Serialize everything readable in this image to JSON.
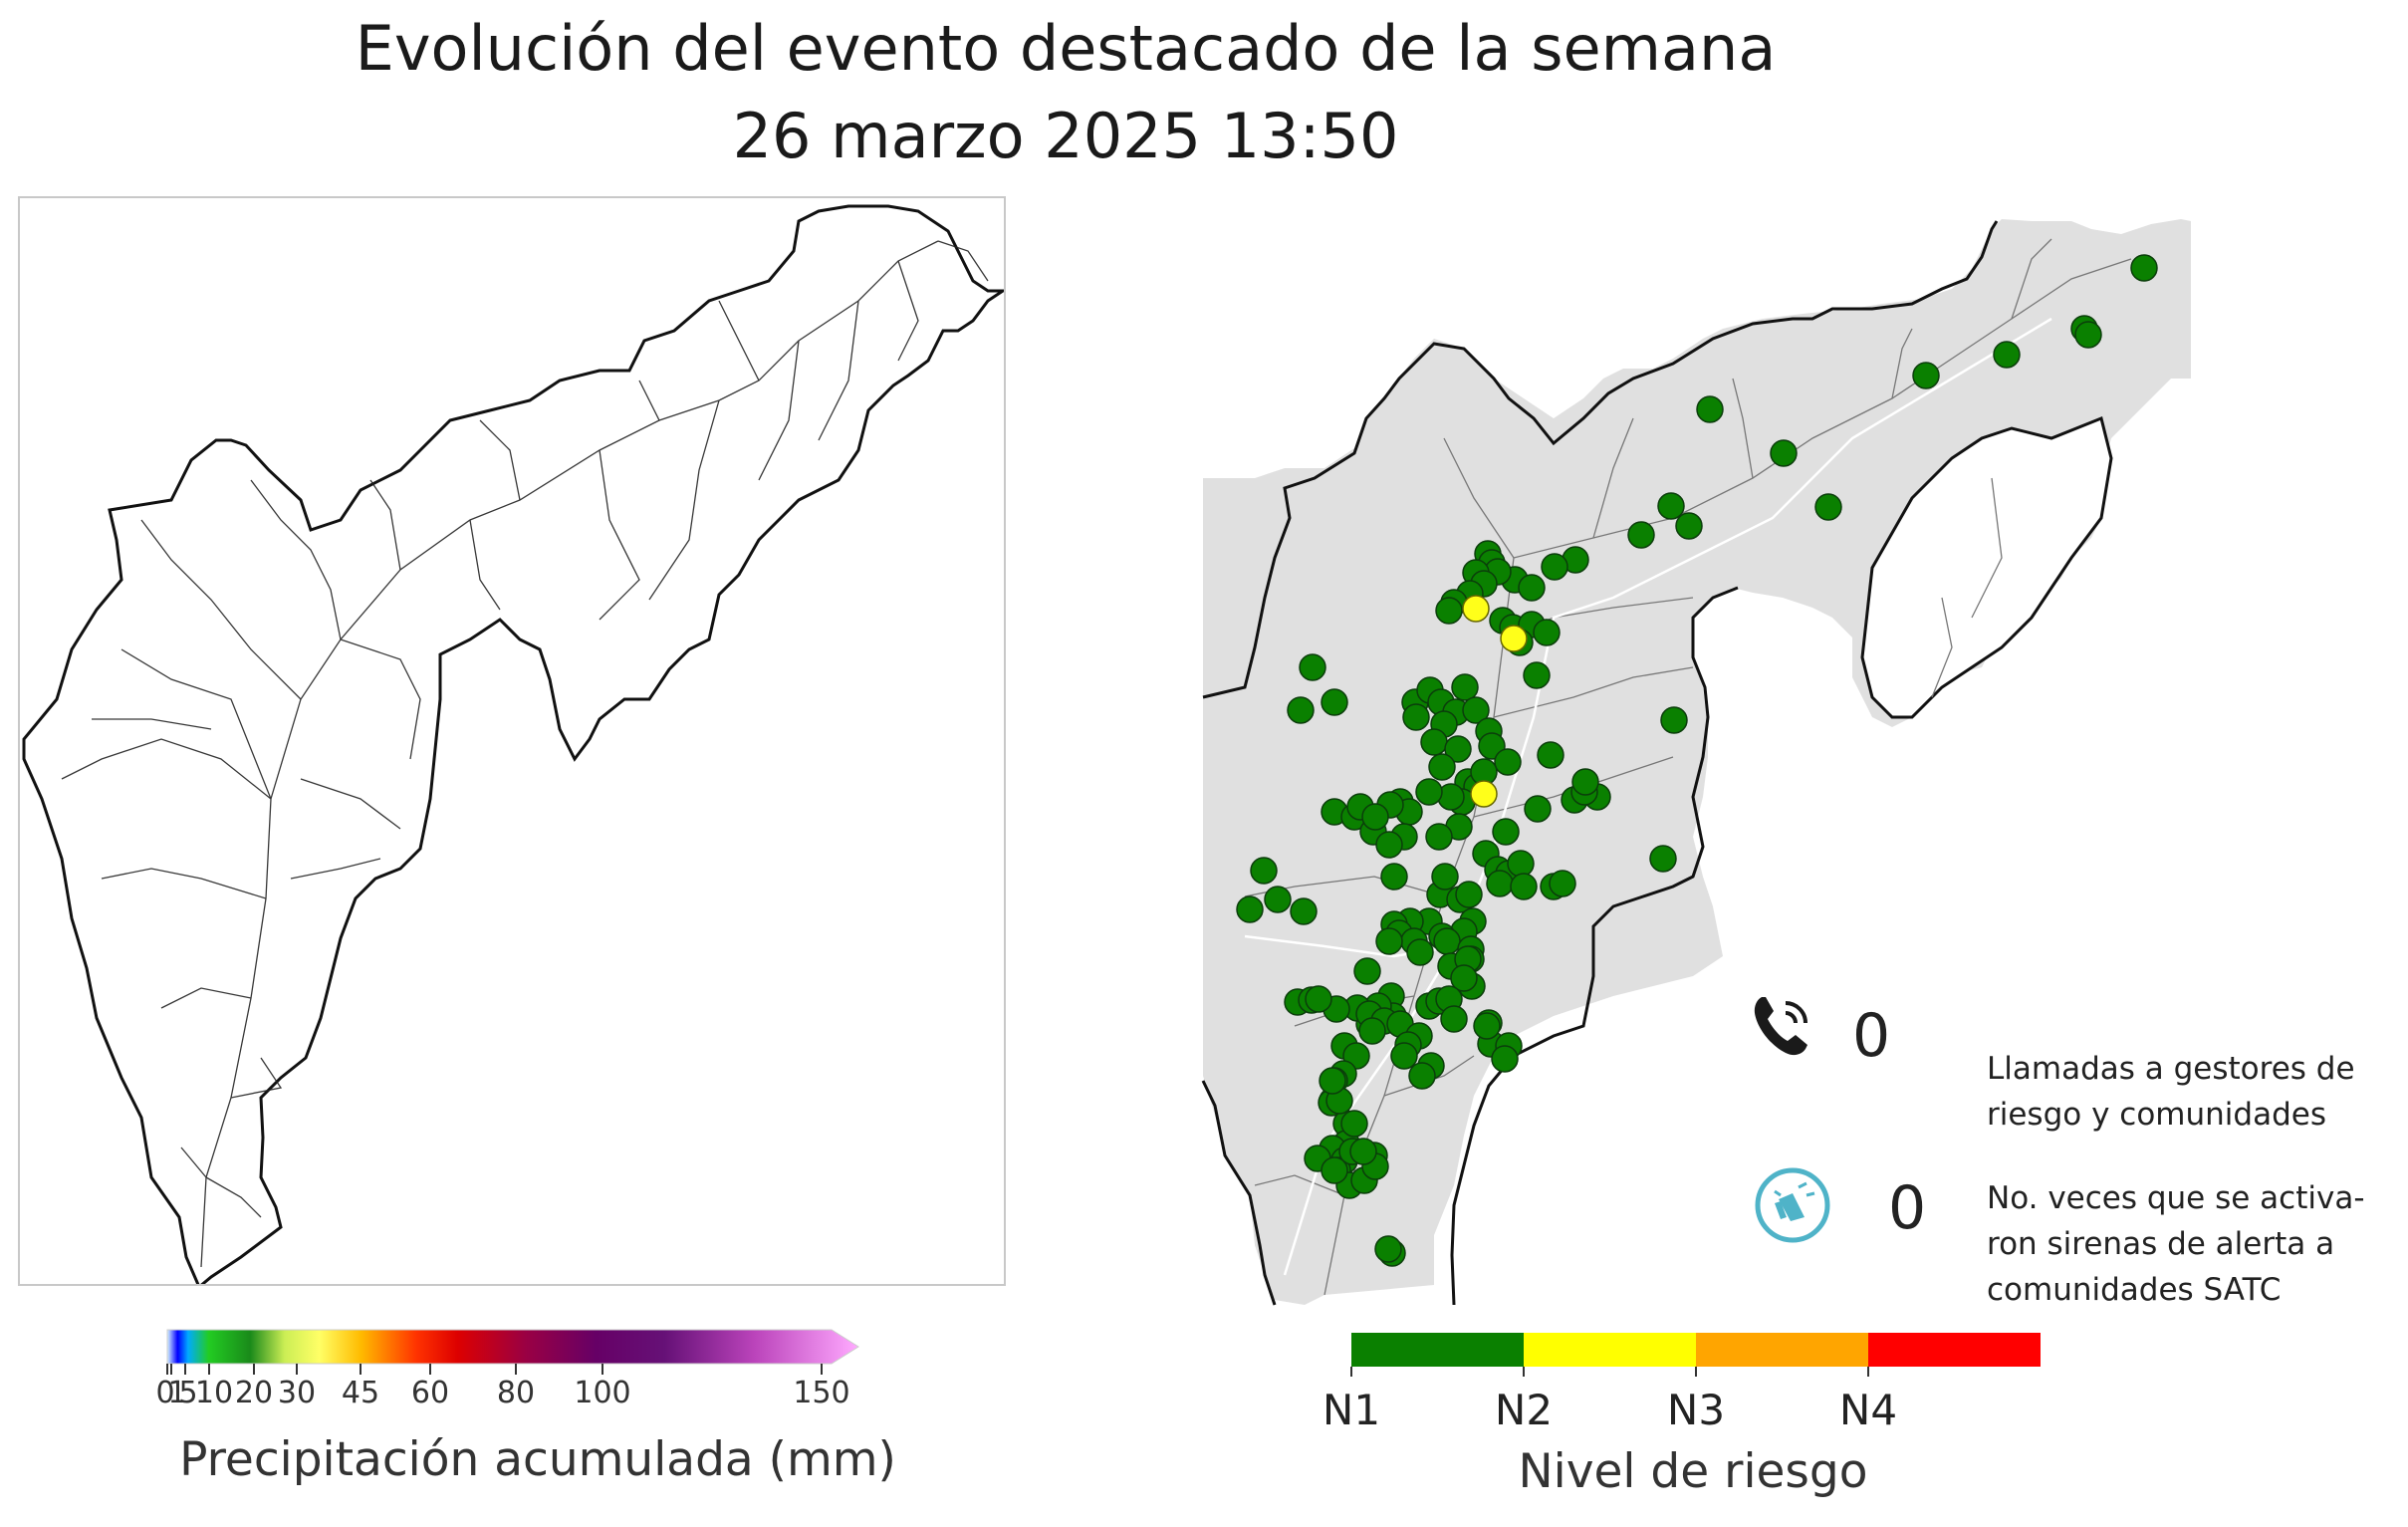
{
  "title": {
    "line1": "Evolución del evento destacado de la semana",
    "line2": "26 marzo 2025 13:50"
  },
  "precip_legend": {
    "title": "Precipitación acumulada (mm)",
    "ticks": [
      "0",
      "1",
      "5",
      "10",
      "20",
      "30",
      "45",
      "60",
      "80",
      "100",
      "150"
    ],
    "tick_values": [
      0,
      1,
      5,
      10,
      20,
      30,
      45,
      60,
      80,
      100,
      150
    ]
  },
  "risk_legend": {
    "title": "Nivel de riesgo",
    "levels": [
      {
        "label": "N1",
        "color": "#0a8000"
      },
      {
        "label": "N2",
        "color": "#ffff00"
      },
      {
        "label": "N3",
        "color": "#ffa500"
      },
      {
        "label": "N4",
        "color": "#ff0000"
      }
    ]
  },
  "calls": {
    "value": "0",
    "description_line1": "Llamadas a gestores de",
    "description_line2": "riesgo y comunidades",
    "icon": "phone-icon"
  },
  "sirens": {
    "value": "0",
    "description_line1": "No. veces que se activa-",
    "description_line2": "ron sirenas de alerta a",
    "description_line3": "comunidades SATC",
    "icon": "siren-icon"
  },
  "stations": {
    "green_color": "#0a8000",
    "yellow_color": "#ffff1a",
    "yellow_count": 3
  }
}
